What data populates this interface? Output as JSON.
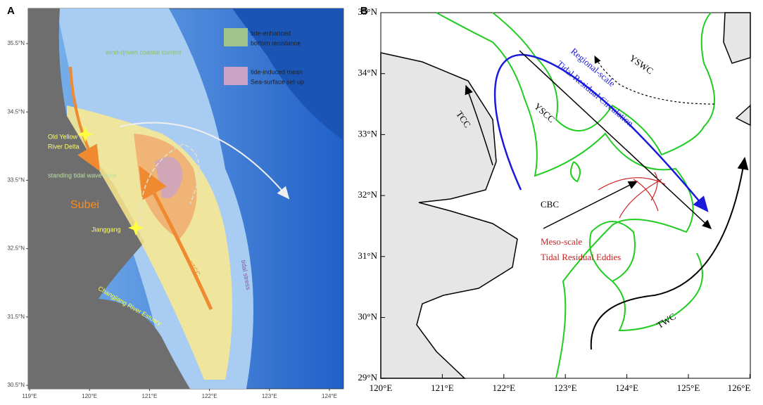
{
  "panel_a": {
    "label": "A",
    "x_ticks": [
      "119°E",
      "120°E",
      "121°E",
      "122°E",
      "123°E",
      "124°E"
    ],
    "y_ticks": [
      "35.5°N",
      "34.5°N",
      "33.5°N",
      "32.5°N",
      "31.5°N",
      "30.5°N"
    ],
    "legend": [
      {
        "lines": [
          "tide-enhanced",
          "bottom resistance"
        ]
      },
      {
        "lines": [
          "tide-induced mean",
          "Sea-surface set-up"
        ]
      }
    ],
    "annotations": {
      "wind_current": "wind-driven coastal current",
      "delta": [
        "Old Yellow",
        "River Delta"
      ],
      "standing_wave": "standing tidal wave area",
      "subei": "Subei",
      "jianggang": "Jianggang",
      "stcc": "STCC",
      "tidal_stress": "tidal stress",
      "estuary": "Changjiang River Estuary"
    }
  },
  "panel_b": {
    "label": "B",
    "x_ticks": [
      "120°E",
      "121°E",
      "122°E",
      "123°E",
      "124°E",
      "125°E",
      "126°E"
    ],
    "y_ticks": [
      "35°N",
      "34°N",
      "33°N",
      "32°N",
      "31°N",
      "30°N",
      "29°N"
    ],
    "annotations": {
      "yswc": "YSWC",
      "regional": [
        "Regional-scale",
        "Tidal Residual Circulation"
      ],
      "yscc": "YSCC",
      "tcc": "TCC",
      "cbc": "CBC",
      "meso": [
        "Meso-scale",
        "Tidal Residual Eddies"
      ],
      "twc": "TWC"
    }
  }
}
